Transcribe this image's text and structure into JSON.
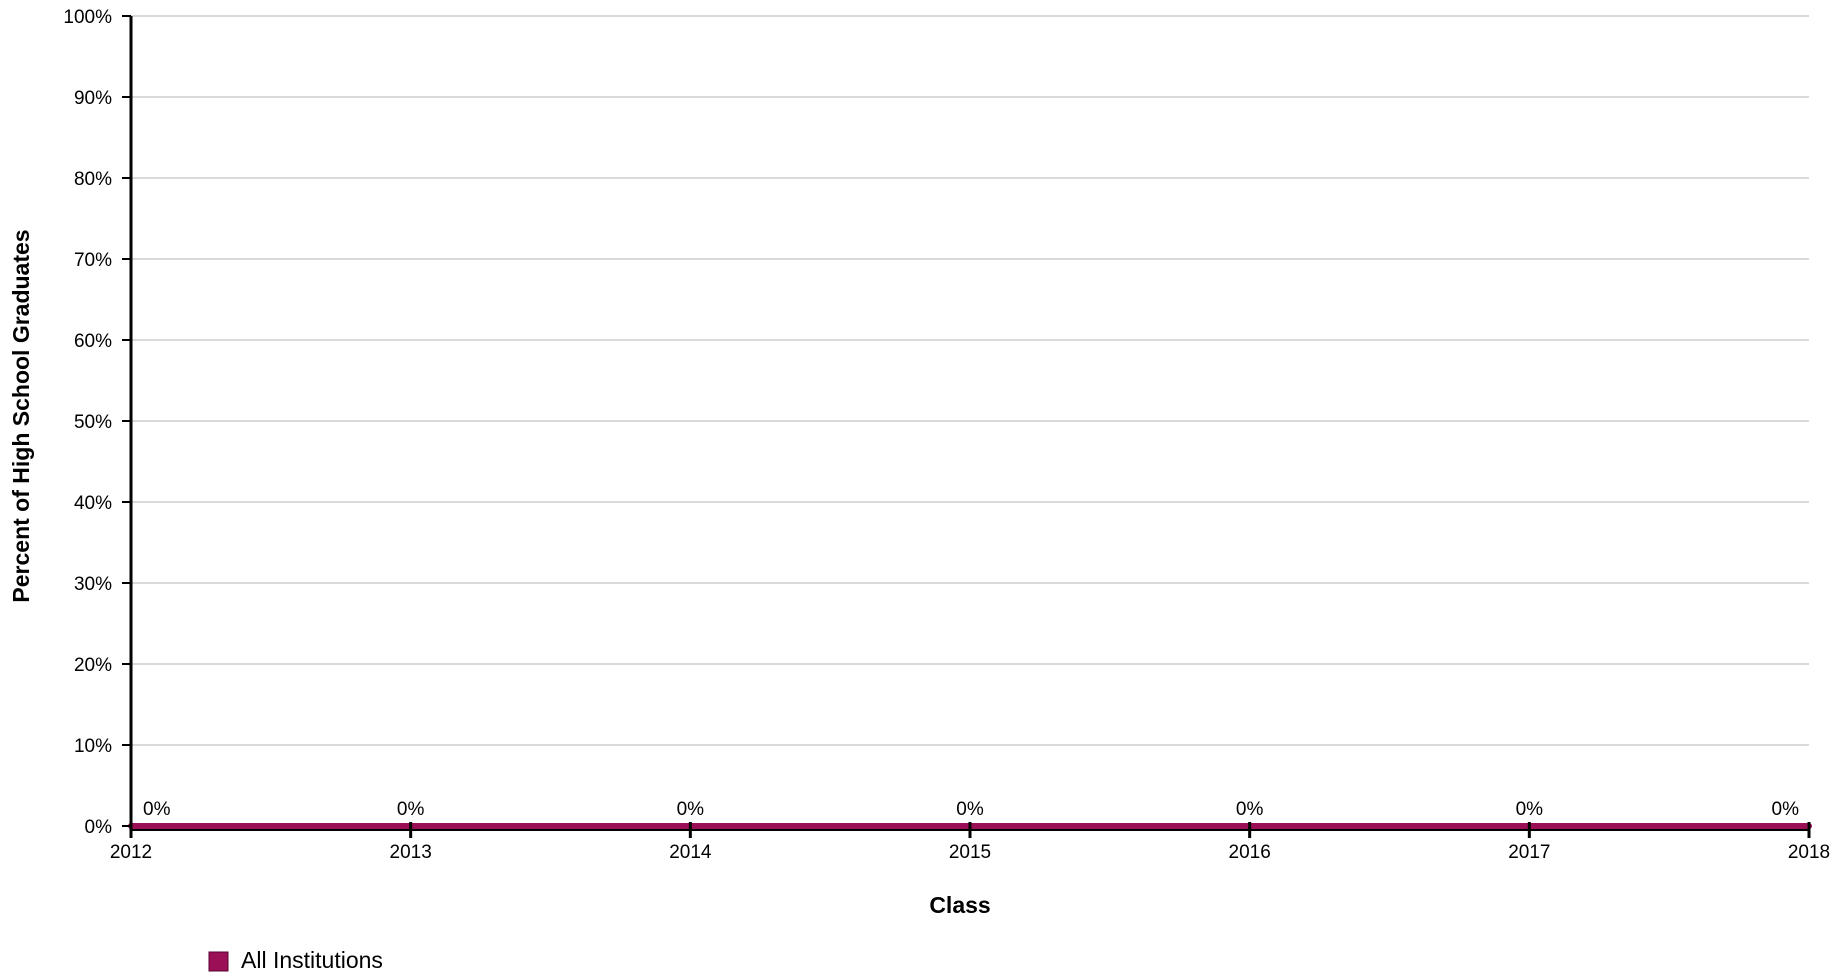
{
  "chart_data": {
    "type": "area",
    "x": [
      "2012",
      "2013",
      "2014",
      "2015",
      "2016",
      "2017",
      "2018"
    ],
    "series": [
      {
        "name": "All Institutions",
        "values": [
          0,
          0,
          0,
          0,
          0,
          0,
          0
        ],
        "data_labels": [
          "0%",
          "0%",
          "0%",
          "0%",
          "0%",
          "0%",
          "0%"
        ],
        "color": "#9b0f57"
      }
    ],
    "xlabel": "Class",
    "ylabel": "Percent of High School Graduates",
    "ylim": [
      0,
      100
    ],
    "yticks": [
      "0%",
      "10%",
      "20%",
      "30%",
      "40%",
      "50%",
      "60%",
      "70%",
      "80%",
      "90%",
      "100%"
    ],
    "grid": true,
    "gridline_color": "#d9d9d9",
    "axis_color": "#000000",
    "legend_position": "bottom-left"
  }
}
